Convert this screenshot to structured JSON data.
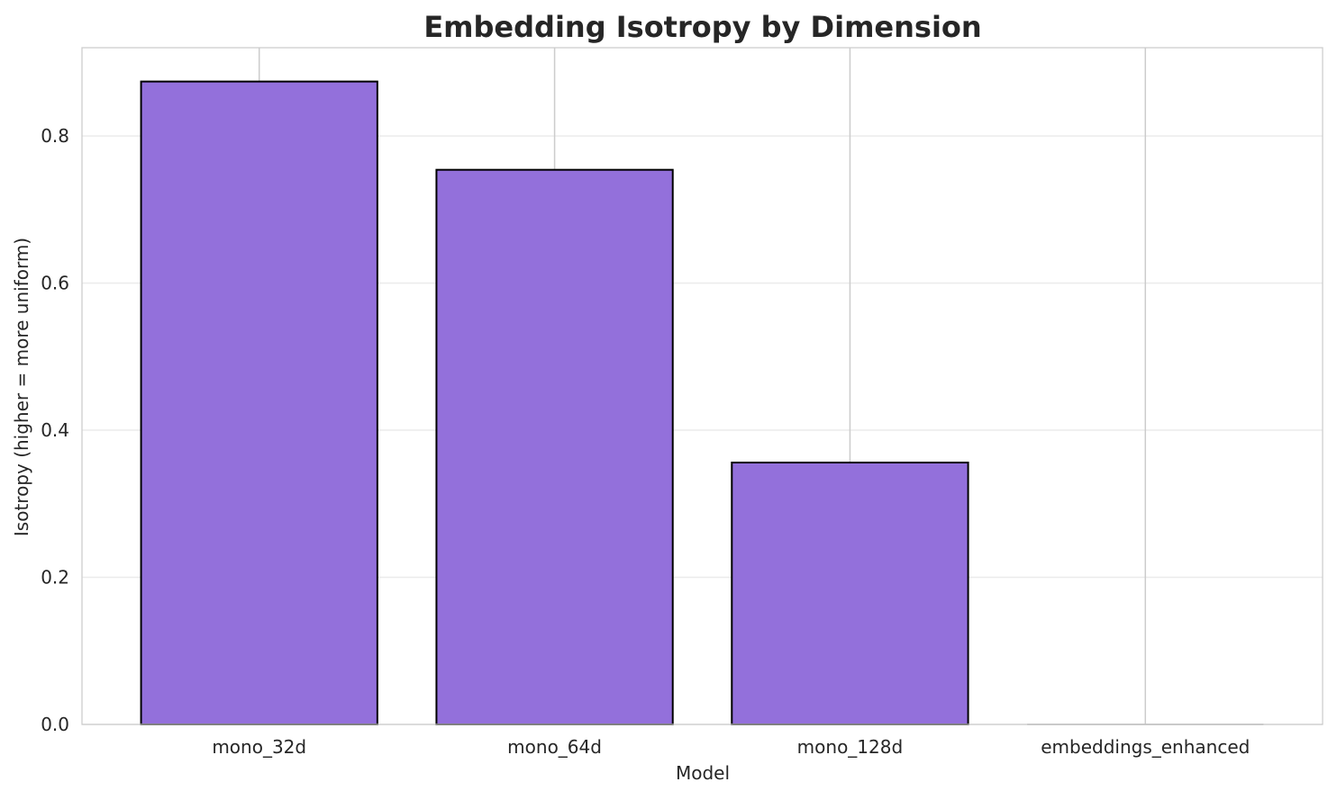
{
  "chart_data": {
    "type": "bar",
    "title": "Embedding Isotropy by Dimension",
    "xlabel": "Model",
    "ylabel": "Isotropy (higher = more uniform)",
    "categories": [
      "mono_32d",
      "mono_64d",
      "mono_128d",
      "embeddings_enhanced"
    ],
    "values": [
      0.874,
      0.754,
      0.356,
      0.0
    ],
    "ylim": [
      0,
      0.92
    ],
    "yticks": [
      0.0,
      0.2,
      0.4,
      0.6,
      0.8
    ],
    "ytick_labels": [
      "0.0",
      "0.2",
      "0.4",
      "0.6",
      "0.8"
    ],
    "grid": true,
    "legend": "none",
    "colors": {
      "bar_fill": "#9370DB",
      "bar_edge": "#000000",
      "grid": "#EBEBEB",
      "vgrid": "#CCCCCC",
      "axes_edge": "#CCCCCC",
      "text": "#262626"
    }
  }
}
